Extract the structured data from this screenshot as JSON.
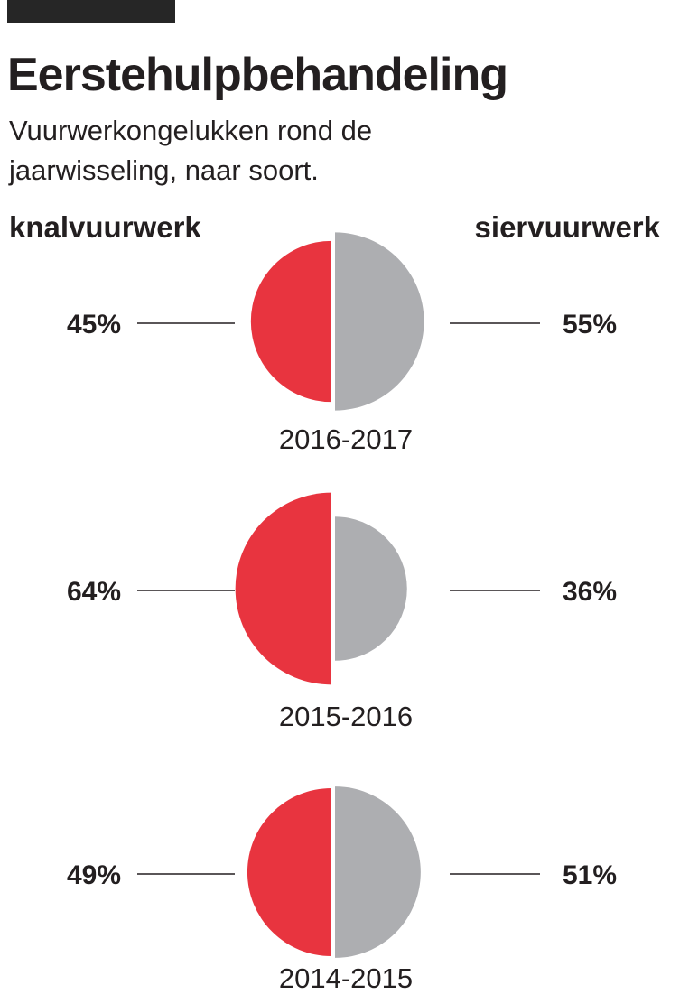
{
  "header": {
    "title": "Eerstehulpbehandeling",
    "subtitle": "Vuurwerkongelukken rond de jaarwisseling, naar soort."
  },
  "legend": {
    "left": "knalvuurwerk",
    "right": "siervuurwerk"
  },
  "colors": {
    "knalvuurwerk": "#e8343f",
    "siervuurwerk": "#adaeb1",
    "text": "#231f20"
  },
  "chart_data": {
    "type": "pie",
    "series": [
      {
        "name": "knalvuurwerk",
        "values": [
          45,
          64,
          49
        ]
      },
      {
        "name": "siervuurwerk",
        "values": [
          55,
          36,
          51
        ]
      }
    ],
    "categories": [
      "2016-2017",
      "2015-2016",
      "2014-2015"
    ],
    "unit": "%",
    "charts": [
      {
        "period": "2016-2017",
        "knalvuurwerk": 45,
        "siervuurwerk": 55,
        "knalvuurwerk_label": "45%",
        "siervuurwerk_label": "55%"
      },
      {
        "period": "2015-2016",
        "knalvuurwerk": 64,
        "siervuurwerk": 36,
        "knalvuurwerk_label": "64%",
        "siervuurwerk_label": "36%"
      },
      {
        "period": "2014-2015",
        "knalvuurwerk": 49,
        "siervuurwerk": 51,
        "knalvuurwerk_label": "49%",
        "siervuurwerk_label": "51%"
      }
    ]
  }
}
